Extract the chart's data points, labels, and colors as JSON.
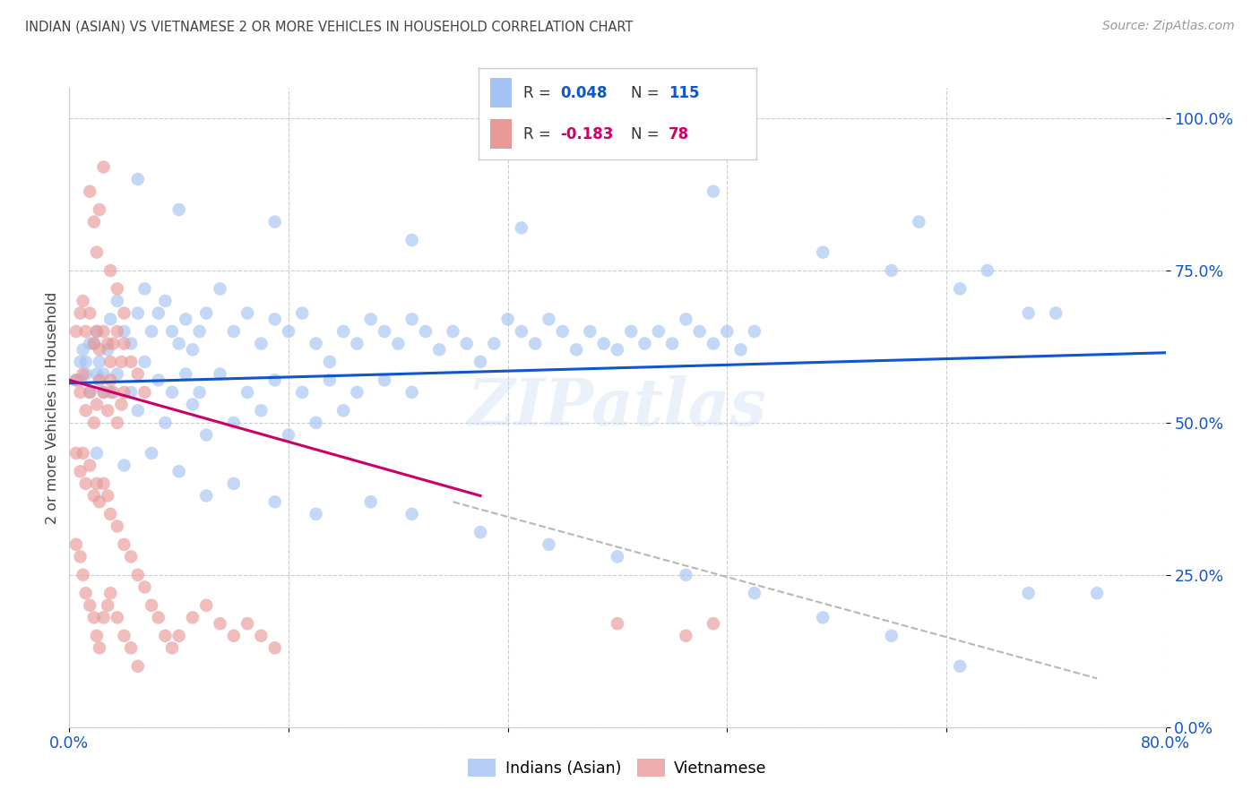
{
  "title": "INDIAN (ASIAN) VS VIETNAMESE 2 OR MORE VEHICLES IN HOUSEHOLD CORRELATION CHART",
  "source": "Source: ZipAtlas.com",
  "ylabel": "2 or more Vehicles in Household",
  "ytick_values": [
    0.0,
    25.0,
    50.0,
    75.0,
    100.0
  ],
  "xlim": [
    0.0,
    80.0
  ],
  "ylim": [
    0.0,
    105.0
  ],
  "blue_color": "#a4c2f4",
  "pink_color": "#ea9999",
  "line_blue": "#1155cc",
  "line_pink": "#cc0066",
  "line_dashed_color": "#b7b7b7",
  "watermark": "ZIPatlas",
  "title_color": "#434343",
  "axis_label_color": "#1155cc",
  "ylabel_color": "#434343",
  "source_color": "#999999",
  "blue_scatter": [
    [
      0.5,
      57
    ],
    [
      0.8,
      60
    ],
    [
      1.0,
      62
    ],
    [
      1.2,
      58
    ],
    [
      1.5,
      55
    ],
    [
      1.8,
      63
    ],
    [
      2.0,
      65
    ],
    [
      2.2,
      60
    ],
    [
      2.5,
      58
    ],
    [
      2.8,
      62
    ],
    [
      3.0,
      67
    ],
    [
      3.5,
      70
    ],
    [
      4.0,
      65
    ],
    [
      4.5,
      63
    ],
    [
      5.0,
      68
    ],
    [
      5.5,
      72
    ],
    [
      6.0,
      65
    ],
    [
      6.5,
      68
    ],
    [
      7.0,
      70
    ],
    [
      7.5,
      65
    ],
    [
      8.0,
      63
    ],
    [
      8.5,
      67
    ],
    [
      9.0,
      62
    ],
    [
      9.5,
      65
    ],
    [
      10.0,
      68
    ],
    [
      11.0,
      72
    ],
    [
      12.0,
      65
    ],
    [
      13.0,
      68
    ],
    [
      14.0,
      63
    ],
    [
      15.0,
      67
    ],
    [
      16.0,
      65
    ],
    [
      17.0,
      68
    ],
    [
      18.0,
      63
    ],
    [
      19.0,
      60
    ],
    [
      20.0,
      65
    ],
    [
      21.0,
      63
    ],
    [
      22.0,
      67
    ],
    [
      23.0,
      65
    ],
    [
      24.0,
      63
    ],
    [
      25.0,
      67
    ],
    [
      26.0,
      65
    ],
    [
      27.0,
      62
    ],
    [
      28.0,
      65
    ],
    [
      29.0,
      63
    ],
    [
      30.0,
      60
    ],
    [
      31.0,
      63
    ],
    [
      32.0,
      67
    ],
    [
      33.0,
      65
    ],
    [
      34.0,
      63
    ],
    [
      35.0,
      67
    ],
    [
      36.0,
      65
    ],
    [
      37.0,
      62
    ],
    [
      38.0,
      65
    ],
    [
      39.0,
      63
    ],
    [
      40.0,
      62
    ],
    [
      41.0,
      65
    ],
    [
      42.0,
      63
    ],
    [
      43.0,
      65
    ],
    [
      44.0,
      63
    ],
    [
      45.0,
      67
    ],
    [
      46.0,
      65
    ],
    [
      47.0,
      63
    ],
    [
      48.0,
      65
    ],
    [
      49.0,
      62
    ],
    [
      50.0,
      65
    ],
    [
      3.0,
      55
    ],
    [
      5.0,
      52
    ],
    [
      7.0,
      50
    ],
    [
      9.0,
      53
    ],
    [
      10.0,
      48
    ],
    [
      12.0,
      50
    ],
    [
      14.0,
      52
    ],
    [
      16.0,
      48
    ],
    [
      18.0,
      50
    ],
    [
      20.0,
      52
    ],
    [
      0.8,
      57
    ],
    [
      1.2,
      60
    ],
    [
      1.5,
      63
    ],
    [
      2.0,
      58
    ],
    [
      2.5,
      55
    ],
    [
      3.5,
      58
    ],
    [
      4.5,
      55
    ],
    [
      5.5,
      60
    ],
    [
      6.5,
      57
    ],
    [
      7.5,
      55
    ],
    [
      8.5,
      58
    ],
    [
      9.5,
      55
    ],
    [
      11.0,
      58
    ],
    [
      13.0,
      55
    ],
    [
      15.0,
      57
    ],
    [
      17.0,
      55
    ],
    [
      19.0,
      57
    ],
    [
      21.0,
      55
    ],
    [
      23.0,
      57
    ],
    [
      25.0,
      55
    ],
    [
      2.0,
      45
    ],
    [
      4.0,
      43
    ],
    [
      6.0,
      45
    ],
    [
      8.0,
      42
    ],
    [
      10.0,
      38
    ],
    [
      12.0,
      40
    ],
    [
      15.0,
      37
    ],
    [
      18.0,
      35
    ],
    [
      22.0,
      37
    ],
    [
      25.0,
      35
    ],
    [
      30.0,
      32
    ],
    [
      35.0,
      30
    ],
    [
      40.0,
      28
    ],
    [
      45.0,
      25
    ],
    [
      50.0,
      22
    ],
    [
      55.0,
      18
    ],
    [
      60.0,
      15
    ],
    [
      65.0,
      10
    ],
    [
      70.0,
      22
    ],
    [
      75.0,
      22
    ],
    [
      33.0,
      82
    ],
    [
      47.0,
      88
    ],
    [
      55.0,
      78
    ],
    [
      60.0,
      75
    ],
    [
      65.0,
      72
    ],
    [
      70.0,
      68
    ],
    [
      62.0,
      83
    ],
    [
      67.0,
      75
    ],
    [
      72.0,
      68
    ],
    [
      5.0,
      90
    ],
    [
      8.0,
      85
    ],
    [
      15.0,
      83
    ],
    [
      25.0,
      80
    ]
  ],
  "pink_scatter": [
    [
      0.5,
      57
    ],
    [
      0.8,
      55
    ],
    [
      1.0,
      58
    ],
    [
      1.2,
      52
    ],
    [
      1.5,
      55
    ],
    [
      1.8,
      50
    ],
    [
      2.0,
      53
    ],
    [
      2.2,
      57
    ],
    [
      2.5,
      55
    ],
    [
      2.8,
      52
    ],
    [
      3.0,
      57
    ],
    [
      3.2,
      55
    ],
    [
      3.5,
      50
    ],
    [
      3.8,
      53
    ],
    [
      4.0,
      55
    ],
    [
      0.5,
      65
    ],
    [
      0.8,
      68
    ],
    [
      1.0,
      70
    ],
    [
      1.2,
      65
    ],
    [
      1.5,
      68
    ],
    [
      1.8,
      63
    ],
    [
      2.0,
      65
    ],
    [
      2.2,
      62
    ],
    [
      2.5,
      65
    ],
    [
      2.8,
      63
    ],
    [
      3.0,
      60
    ],
    [
      3.2,
      63
    ],
    [
      3.5,
      65
    ],
    [
      3.8,
      60
    ],
    [
      4.0,
      63
    ],
    [
      4.5,
      60
    ],
    [
      5.0,
      58
    ],
    [
      5.5,
      55
    ],
    [
      0.5,
      45
    ],
    [
      0.8,
      42
    ],
    [
      1.0,
      45
    ],
    [
      1.2,
      40
    ],
    [
      1.5,
      43
    ],
    [
      1.8,
      38
    ],
    [
      2.0,
      40
    ],
    [
      2.2,
      37
    ],
    [
      2.5,
      40
    ],
    [
      2.8,
      38
    ],
    [
      3.0,
      35
    ],
    [
      3.5,
      33
    ],
    [
      4.0,
      30
    ],
    [
      4.5,
      28
    ],
    [
      5.0,
      25
    ],
    [
      5.5,
      23
    ],
    [
      6.0,
      20
    ],
    [
      6.5,
      18
    ],
    [
      7.0,
      15
    ],
    [
      7.5,
      13
    ],
    [
      8.0,
      15
    ],
    [
      9.0,
      18
    ],
    [
      10.0,
      20
    ],
    [
      11.0,
      17
    ],
    [
      12.0,
      15
    ],
    [
      13.0,
      17
    ],
    [
      14.0,
      15
    ],
    [
      15.0,
      13
    ],
    [
      0.5,
      30
    ],
    [
      0.8,
      28
    ],
    [
      1.0,
      25
    ],
    [
      1.2,
      22
    ],
    [
      1.5,
      20
    ],
    [
      1.8,
      18
    ],
    [
      2.0,
      15
    ],
    [
      2.2,
      13
    ],
    [
      2.5,
      18
    ],
    [
      2.8,
      20
    ],
    [
      3.0,
      22
    ],
    [
      3.5,
      18
    ],
    [
      4.0,
      15
    ],
    [
      4.5,
      13
    ],
    [
      5.0,
      10
    ],
    [
      1.5,
      88
    ],
    [
      1.8,
      83
    ],
    [
      2.0,
      78
    ],
    [
      2.5,
      92
    ],
    [
      2.2,
      85
    ],
    [
      3.0,
      75
    ],
    [
      3.5,
      72
    ],
    [
      4.0,
      68
    ],
    [
      40.0,
      17
    ],
    [
      45.0,
      15
    ],
    [
      47.0,
      17
    ]
  ],
  "blue_line_x": [
    0.0,
    80.0
  ],
  "blue_line_y": [
    56.5,
    61.5
  ],
  "pink_line_x": [
    0.0,
    30.0
  ],
  "pink_line_y": [
    57.0,
    38.0
  ],
  "dashed_line_x": [
    28.0,
    75.0
  ],
  "dashed_line_y": [
    37.0,
    8.0
  ]
}
